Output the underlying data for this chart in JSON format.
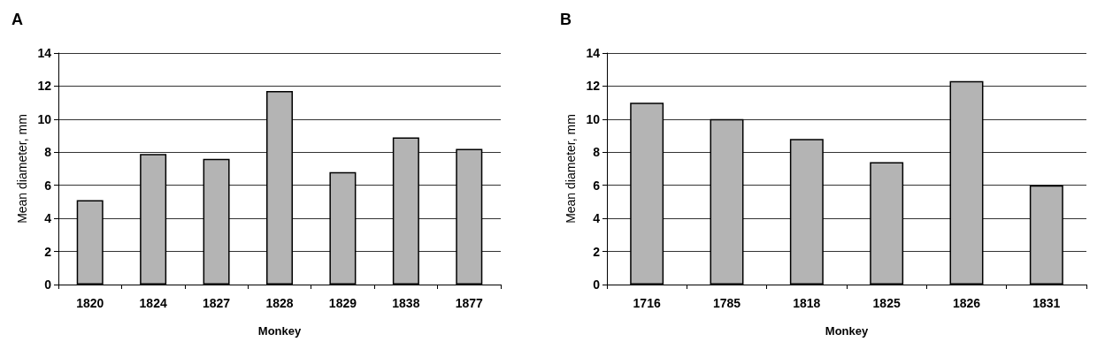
{
  "chart_data": [
    {
      "type": "bar",
      "title": "A",
      "xlabel": "Monkey",
      "ylabel": "Mean diameter, mm",
      "categories": [
        "1820",
        "1824",
        "1827",
        "1828",
        "1829",
        "1838",
        "1877"
      ],
      "values": [
        5.1,
        7.9,
        7.6,
        11.7,
        6.8,
        8.9,
        8.2
      ],
      "color": "#b4b4b4",
      "ylim": [
        0,
        14
      ],
      "yticks": [
        0,
        2,
        4,
        6,
        8,
        10,
        12,
        14
      ],
      "grid": "y"
    },
    {
      "type": "bar",
      "title": "B",
      "xlabel": "Monkey",
      "ylabel": "Mean diameter, mm",
      "categories": [
        "1716",
        "1785",
        "1818",
        "1825",
        "1826",
        "1831"
      ],
      "values": [
        11.0,
        10.0,
        8.8,
        7.4,
        12.3,
        6.0
      ],
      "color": "#b4b4b4",
      "ylim": [
        0,
        14
      ],
      "yticks": [
        0,
        2,
        4,
        6,
        8,
        10,
        12,
        14
      ],
      "grid": "y"
    }
  ]
}
